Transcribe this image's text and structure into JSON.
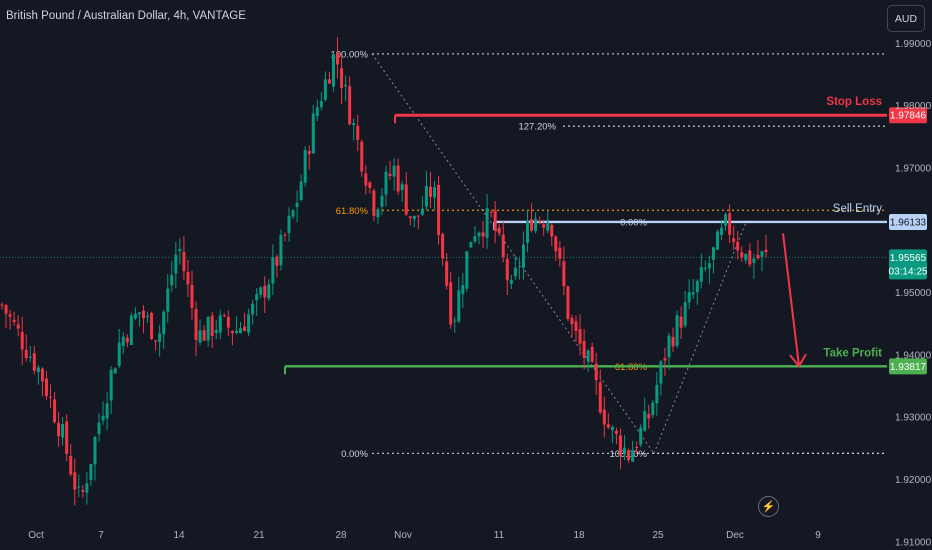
{
  "header": {
    "title": "British Pound / Australian Dollar, 4h, VANTAGE",
    "currency_button": "AUD"
  },
  "colors": {
    "background": "#141823",
    "up": "#089981",
    "down": "#f23645",
    "stop_loss": "#f23645",
    "entry": "#b7d2f5",
    "take_profit": "#4caf50",
    "fib": "#d1d4dc",
    "fib_mid": "#ff9800"
  },
  "icons": {
    "replay": "lightning-icon"
  },
  "chart_data": {
    "type": "candlestick",
    "title": "British Pound / Australian Dollar, 4h, VANTAGE",
    "x_ticks": [
      "Oct",
      "7",
      "14",
      "21",
      "28",
      "Nov",
      "11",
      "18",
      "25",
      "Dec",
      "9"
    ],
    "y_ticks": [
      "1.99000",
      "1.98000",
      "1.97000",
      "1.95000",
      "1.94000",
      "1.93000",
      "1.92000",
      "1.91000"
    ],
    "ylim": [
      1.9095,
      1.9955
    ],
    "candles_anchor_prices": [
      1.948,
      1.9425,
      1.937,
      1.928,
      1.916,
      1.93,
      1.942,
      1.947,
      1.943,
      1.958,
      1.943,
      1.945,
      1.944,
      1.948,
      1.955,
      1.964,
      1.979,
      1.9885,
      1.976,
      1.964,
      1.97,
      1.961,
      1.967,
      1.945,
      1.96,
      1.962,
      1.95,
      1.962,
      1.962,
      1.945,
      1.938,
      1.928,
      1.924,
      1.93,
      1.942,
      1.948,
      1.954,
      1.961,
      1.9555,
      1.9557
    ],
    "current_price": {
      "price": "1.95565",
      "countdown": "03:14:25"
    },
    "levels": [
      {
        "name": "Stop Loss",
        "price": 1.97846,
        "label": "1.97846",
        "color": "#f23645"
      },
      {
        "name": "Sell Entry",
        "price": 1.96133,
        "label": "1.96133",
        "color": "#b7d2f5"
      },
      {
        "name": "Take Profit",
        "price": 1.93817,
        "label": "1.93817",
        "color": "#4caf50"
      }
    ],
    "fib_left": [
      {
        "label": "100.00%",
        "price": 1.9883
      },
      {
        "label": "127.20%",
        "price": 1.9767
      },
      {
        "label": "61.80%",
        "price": 1.9632
      },
      {
        "label": "0.00%",
        "price": 1.9242
      }
    ],
    "fib_right": [
      {
        "label": "0.00%",
        "price": 1.9613
      },
      {
        "label": "61.80%",
        "price": 1.9381
      },
      {
        "label": "100.00%",
        "price": 1.9242
      }
    ],
    "projection": {
      "from_price": 1.9595,
      "to_price": 1.9382
    }
  }
}
